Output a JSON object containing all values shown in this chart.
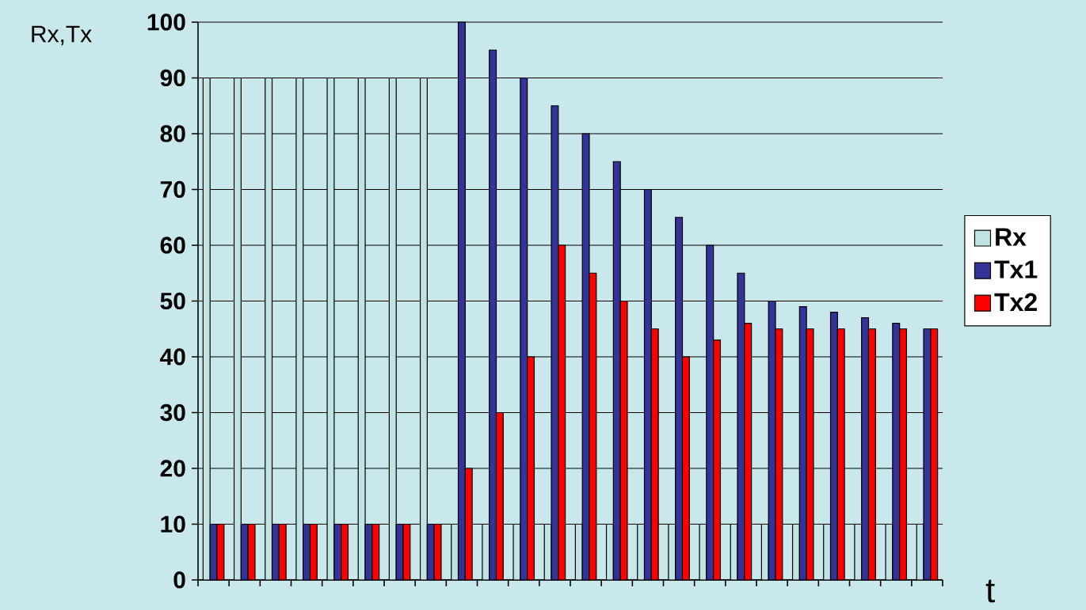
{
  "chart_data": {
    "type": "bar",
    "xlabel": "t",
    "ylabel": "Rx,Tx",
    "categories": [
      null,
      null,
      null,
      null,
      null,
      null,
      null,
      null,
      null,
      null,
      null,
      null,
      null,
      null,
      null,
      null,
      null,
      null,
      null,
      null,
      null,
      null,
      null,
      null
    ],
    "series": [
      {
        "name": "Rx",
        "color": "#c0e4e4",
        "values": [
          90,
          90,
          90,
          90,
          90,
          90,
          90,
          90,
          10,
          10,
          10,
          10,
          10,
          10,
          10,
          10,
          10,
          10,
          10,
          10,
          10,
          10,
          10,
          10
        ]
      },
      {
        "name": "Tx1",
        "color": "#333399",
        "values": [
          10,
          10,
          10,
          10,
          10,
          10,
          10,
          10,
          100,
          95,
          90,
          85,
          80,
          75,
          70,
          65,
          60,
          55,
          50,
          49,
          48,
          47,
          46,
          45
        ]
      },
      {
        "name": "Tx2",
        "color": "#ff0000",
        "values": [
          10,
          10,
          10,
          10,
          10,
          10,
          10,
          10,
          20,
          30,
          40,
          60,
          55,
          50,
          45,
          40,
          43,
          46,
          45,
          45,
          45,
          45,
          45,
          45
        ]
      }
    ],
    "ylim": [
      0,
      100
    ],
    "yticks": [
      0,
      10,
      20,
      30,
      40,
      50,
      60,
      70,
      80,
      90,
      100
    ],
    "grid": "y",
    "legend": "right",
    "tick_labels": "y"
  }
}
